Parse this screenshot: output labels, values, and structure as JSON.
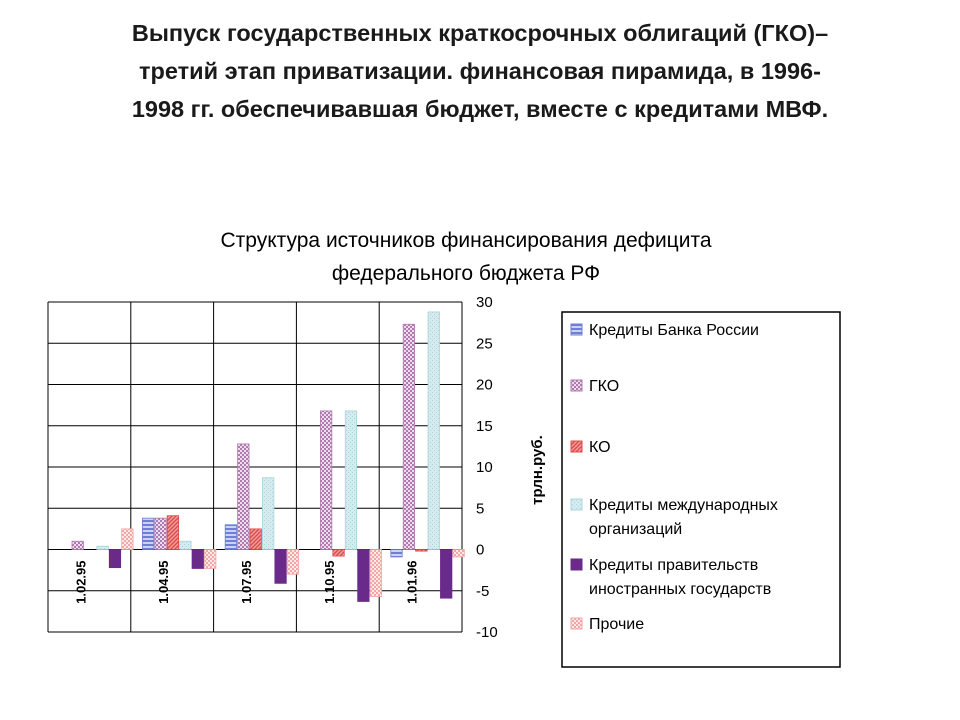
{
  "slide": {
    "title_lines": [
      "Выпуск государственных краткосрочных облигаций (ГКО)–",
      "третий этап приватизации. финансовая пирамида, в 1996-",
      "1998 гг. обеспечивавшая бюджет, вместе с кредитами МВФ."
    ]
  },
  "chart_data": {
    "type": "bar",
    "title_lines": [
      "Структура источников финансирования дефицита",
      "федерального бюджета РФ"
    ],
    "ylabel": "трлн.руб.",
    "ylim": [
      -10,
      30
    ],
    "y_ticks": [
      30,
      25,
      20,
      15,
      10,
      5,
      0,
      -5,
      -10
    ],
    "categories": [
      "1.02.95",
      "1.04.95",
      "1.07.95",
      "1.10.95",
      "1.01.96"
    ],
    "grid": true,
    "legend_position": "right",
    "series": [
      {
        "name": "Кредиты Банка России",
        "color": "#6f7fd6",
        "pattern": "hlines",
        "values": [
          0,
          3.8,
          3.0,
          0,
          -0.9
        ]
      },
      {
        "name": "ГКО",
        "color": "#b07ab0",
        "pattern": "dots",
        "values": [
          1.0,
          3.8,
          12.8,
          16.8,
          27.3
        ]
      },
      {
        "name": "КО",
        "color": "#e04a4a",
        "pattern": "diag",
        "values": [
          0,
          4.1,
          2.5,
          -0.8,
          -0.2
        ]
      },
      {
        "name": "Кредиты международных организаций",
        "color": "#a7d4dc",
        "pattern": "fine",
        "values": [
          0.4,
          1.0,
          8.7,
          16.8,
          28.8
        ]
      },
      {
        "name": "Кредиты правительств иностранных государств",
        "color": "#6a2a8a",
        "pattern": "solid",
        "values": [
          -2.2,
          -2.3,
          -4.1,
          -6.3,
          -5.9
        ]
      },
      {
        "name": "Прочие",
        "color": "#f2a6a6",
        "pattern": "dots",
        "values": [
          2.5,
          -2.3,
          -3.0,
          -5.7,
          -0.9
        ]
      }
    ],
    "legend_lines": [
      [
        "Кредиты Банка России"
      ],
      [
        "ГКО"
      ],
      [
        "КО"
      ],
      [
        "Кредиты международных",
        "организаций"
      ],
      [
        "Кредиты правительств",
        "иностранных государств"
      ],
      [
        "Прочие"
      ]
    ]
  }
}
